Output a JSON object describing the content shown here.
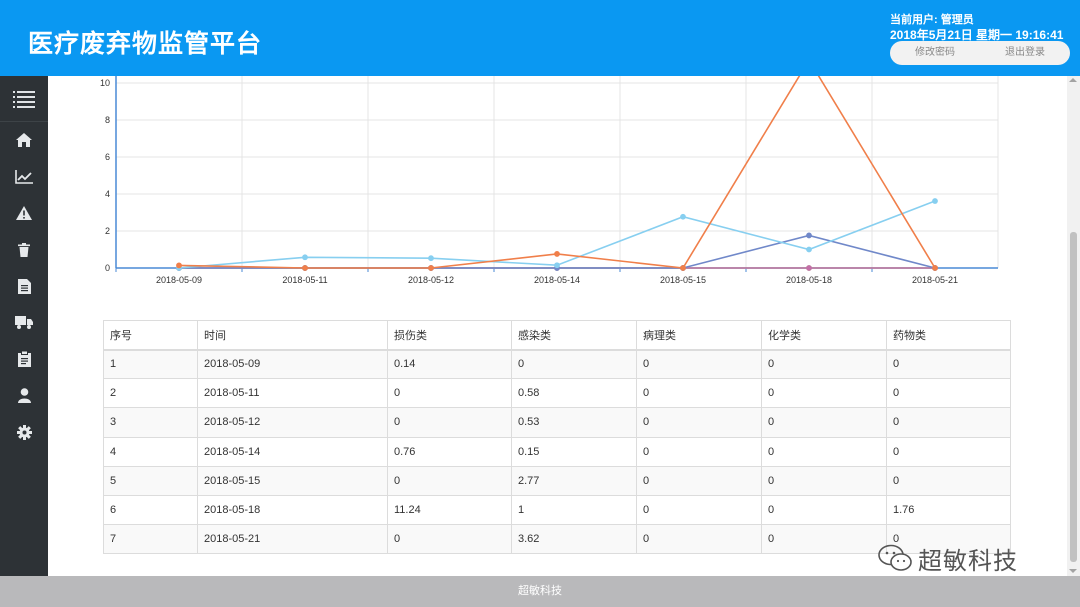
{
  "header": {
    "title": "医疗废弃物监管平台",
    "user": "当前用户: 管理员",
    "datetime": "2018年5月21日 星期一 19:16:41",
    "change_password": "修改密码",
    "logout": "退出登录"
  },
  "sidebar": {
    "items": [
      {
        "icon": "menu-icon"
      },
      {
        "icon": "home-icon"
      },
      {
        "icon": "line-chart-icon"
      },
      {
        "icon": "warning-icon"
      },
      {
        "icon": "trash-icon"
      },
      {
        "icon": "document-icon"
      },
      {
        "icon": "truck-icon"
      },
      {
        "icon": "clipboard-icon"
      },
      {
        "icon": "user-icon"
      },
      {
        "icon": "gear-icon"
      }
    ]
  },
  "chart_data": {
    "type": "line",
    "x": [
      "2018-05-09",
      "2018-05-11",
      "2018-05-12",
      "2018-05-14",
      "2018-05-15",
      "2018-05-18",
      "2018-05-21"
    ],
    "ylim": [
      0,
      10
    ],
    "yticks": [
      0,
      2,
      4,
      6,
      8,
      10
    ],
    "grid": true,
    "series": [
      {
        "key": "injury",
        "values": [
          0.14,
          0,
          0,
          0.76,
          0,
          11.24,
          0
        ],
        "color": "#f07f4a"
      },
      {
        "key": "infectious",
        "values": [
          0,
          0.58,
          0.53,
          0.15,
          2.77,
          1,
          3.62
        ],
        "color": "#87cff0"
      },
      {
        "key": "pathological",
        "values": [
          0,
          0,
          0,
          0,
          0,
          0,
          0
        ],
        "color": "#c46fa8"
      },
      {
        "key": "chemical",
        "values": [
          0,
          0,
          0,
          0,
          0,
          0,
          0
        ],
        "color": "#9ad073"
      },
      {
        "key": "pharma",
        "values": [
          0,
          0,
          0,
          0,
          0,
          1.76,
          0
        ],
        "color": "#7088c9"
      }
    ]
  },
  "table": {
    "headers": [
      "序号",
      "时间",
      "损伤类",
      "感染类",
      "病理类",
      "化学类",
      "药物类"
    ],
    "rows": [
      [
        "1",
        "2018-05-09",
        "0.14",
        "0",
        "0",
        "0",
        "0"
      ],
      [
        "2",
        "2018-05-11",
        "0",
        "0.58",
        "0",
        "0",
        "0"
      ],
      [
        "3",
        "2018-05-12",
        "0",
        "0.53",
        "0",
        "0",
        "0"
      ],
      [
        "4",
        "2018-05-14",
        "0.76",
        "0.15",
        "0",
        "0",
        "0"
      ],
      [
        "5",
        "2018-05-15",
        "0",
        "2.77",
        "0",
        "0",
        "0"
      ],
      [
        "6",
        "2018-05-18",
        "11.24",
        "1",
        "0",
        "0",
        "1.76"
      ],
      [
        "7",
        "2018-05-21",
        "0",
        "3.62",
        "0",
        "0",
        "0"
      ]
    ]
  },
  "footer": {
    "text": "超敏科技"
  },
  "watermark": {
    "text": "超敏科技"
  }
}
